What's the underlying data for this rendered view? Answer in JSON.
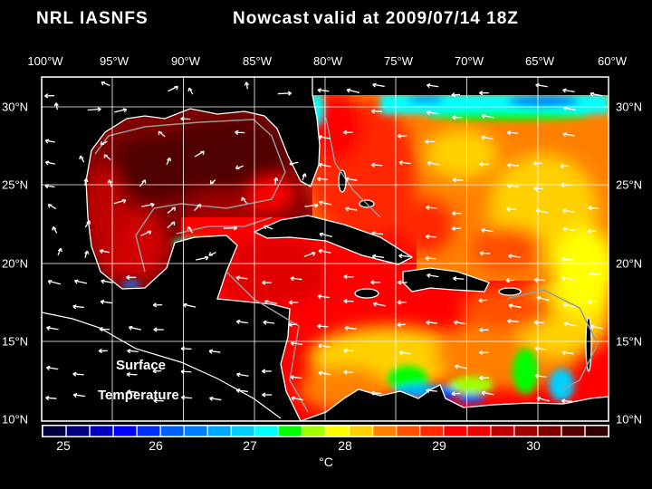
{
  "header": {
    "source": "NRL IASNFS",
    "product": "Nowcast",
    "valid": "valid at 2009/07/14 18Z"
  },
  "axes": {
    "lon_labels": [
      "100°W",
      "95°W",
      "90°W",
      "85°W",
      "80°W",
      "75°W",
      "70°W",
      "65°W",
      "60°W"
    ],
    "lat_labels": [
      "30°N",
      "25°N",
      "20°N",
      "15°N",
      "10°N"
    ]
  },
  "annotation": {
    "line1": "Surface",
    "line2": "Temperature"
  },
  "colorbar": {
    "min": 25,
    "max": 31,
    "step": 0.25,
    "tick_labels": [
      "25",
      "26",
      "27",
      "28",
      "29",
      "30"
    ],
    "unit": "°C",
    "colors": [
      "#000040",
      "#000080",
      "#0000c0",
      "#0000ff",
      "#0030ff",
      "#0060ff",
      "#0080ff",
      "#00a8ff",
      "#00d0ff",
      "#00ffff",
      "#00ff00",
      "#a0ff00",
      "#ffff00",
      "#ffd000",
      "#ff8000",
      "#ff5000",
      "#ff2800",
      "#ff0000",
      "#f00000",
      "#c00000",
      "#a00000",
      "#800000",
      "#500000",
      "#300000"
    ]
  }
}
